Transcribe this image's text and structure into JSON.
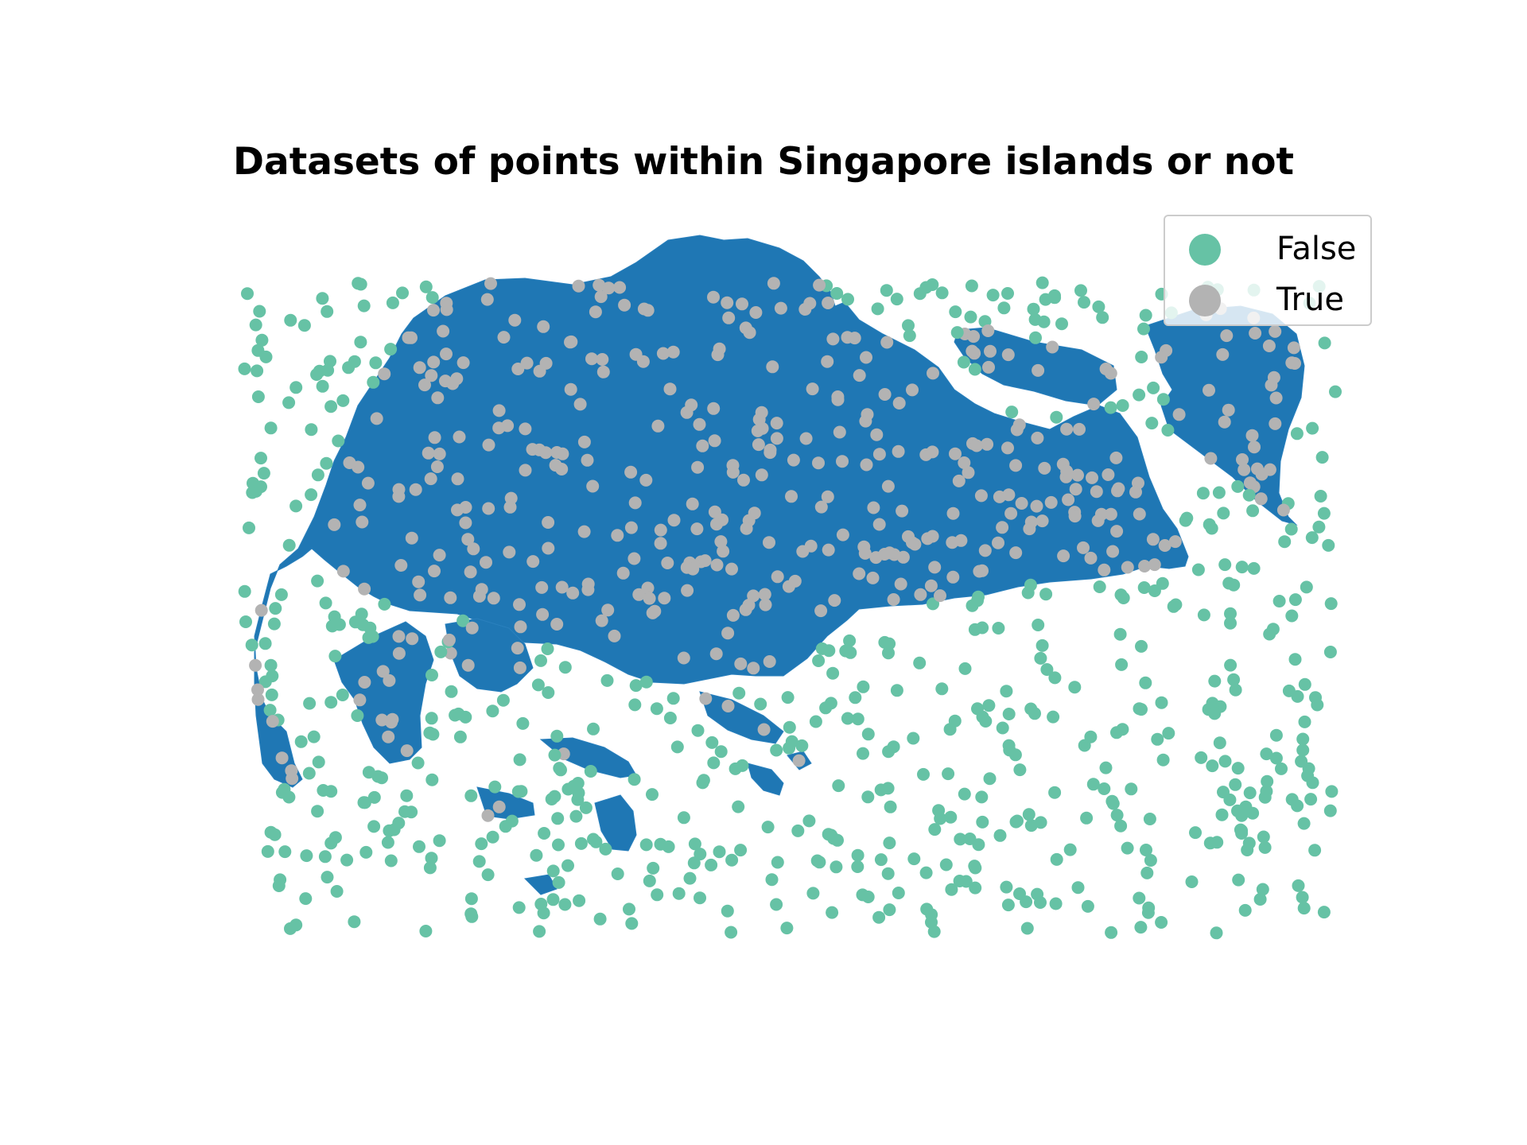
{
  "chart_data": {
    "type": "scatter",
    "title": "Datasets of points within Singapore islands or not",
    "xlabel": "",
    "ylabel": "",
    "axes_visible": false,
    "grid": false,
    "legend_placement": "top-right",
    "background_layer": {
      "kind": "choropleth-outline",
      "subject": "Singapore islands",
      "fill_color": "#1f77b4"
    },
    "series": [
      {
        "name": "False",
        "color": "#66c2a5",
        "count_shown": "approx 600"
      },
      {
        "name": "True",
        "color": "#b3b3b3",
        "count_shown": "approx 400"
      }
    ]
  },
  "legend": {
    "items": [
      {
        "label": "False",
        "color": "#66c2a5"
      },
      {
        "label": "True",
        "color": "#b3b3b3"
      }
    ]
  }
}
